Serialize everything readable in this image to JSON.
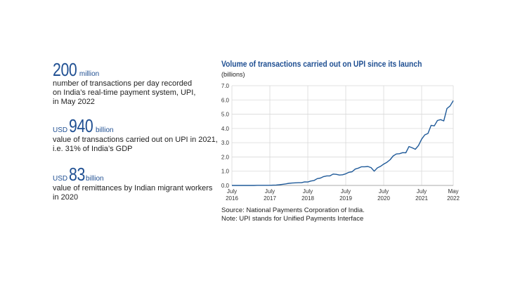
{
  "stats": [
    {
      "prefix": "",
      "number": "200",
      "unit": "million",
      "lines": [
        "number of transactions per day recorded",
        "on India’s real-time payment system, UPI,",
        "in May 2022"
      ]
    },
    {
      "prefix": "USD",
      "number": "940",
      "unit": "billion",
      "lines": [
        "value of transactions carried out on UPI in 2021,",
        "i.e. 31% of India’s GDP"
      ]
    },
    {
      "prefix": "USD",
      "number": "83",
      "unit": "billion",
      "lines": [
        "value of remittances by Indian migrant workers",
        "in 2020"
      ]
    }
  ],
  "chart_data": {
    "type": "line",
    "title": "Volume of transactions carried out on UPI since its launch",
    "ylabel": "(billions)",
    "ylim": [
      0,
      7
    ],
    "yticks": [
      "0.0",
      "1.0",
      "2.0",
      "3.0",
      "4.0",
      "5.0",
      "6.0",
      "7.0"
    ],
    "xlim": [
      "2016-07",
      "2022-05"
    ],
    "xticks": [
      {
        "top": "July",
        "bottom": "2016",
        "date": "2016-07"
      },
      {
        "top": "July",
        "bottom": "2017",
        "date": "2017-07"
      },
      {
        "top": "July",
        "bottom": "2018",
        "date": "2018-07"
      },
      {
        "top": "July",
        "bottom": "2019",
        "date": "2019-07"
      },
      {
        "top": "July",
        "bottom": "2020",
        "date": "2020-07"
      },
      {
        "top": "July",
        "bottom": "2021",
        "date": "2021-07"
      },
      {
        "top": "May",
        "bottom": "2022",
        "date": "2022-05"
      }
    ],
    "grid": true,
    "color": "#1f5a99",
    "series": [
      {
        "points": [
          [
            "2016-07",
            0.0
          ],
          [
            "2016-08",
            0.0
          ],
          [
            "2016-09",
            0.0
          ],
          [
            "2016-10",
            0.0
          ],
          [
            "2016-11",
            0.0
          ],
          [
            "2016-12",
            0.0
          ],
          [
            "2017-01",
            0.0
          ],
          [
            "2017-02",
            0.0
          ],
          [
            "2017-03",
            0.01
          ],
          [
            "2017-04",
            0.01
          ],
          [
            "2017-05",
            0.01
          ],
          [
            "2017-06",
            0.01
          ],
          [
            "2017-07",
            0.01
          ],
          [
            "2017-08",
            0.02
          ],
          [
            "2017-09",
            0.03
          ],
          [
            "2017-10",
            0.05
          ],
          [
            "2017-11",
            0.08
          ],
          [
            "2017-12",
            0.11
          ],
          [
            "2018-01",
            0.15
          ],
          [
            "2018-02",
            0.17
          ],
          [
            "2018-03",
            0.18
          ],
          [
            "2018-04",
            0.19
          ],
          [
            "2018-05",
            0.19
          ],
          [
            "2018-06",
            0.25
          ],
          [
            "2018-07",
            0.24
          ],
          [
            "2018-08",
            0.31
          ],
          [
            "2018-09",
            0.35
          ],
          [
            "2018-10",
            0.48
          ],
          [
            "2018-11",
            0.52
          ],
          [
            "2018-12",
            0.62
          ],
          [
            "2019-01",
            0.67
          ],
          [
            "2019-02",
            0.67
          ],
          [
            "2019-03",
            0.8
          ],
          [
            "2019-04",
            0.78
          ],
          [
            "2019-05",
            0.73
          ],
          [
            "2019-06",
            0.75
          ],
          [
            "2019-07",
            0.82
          ],
          [
            "2019-08",
            0.92
          ],
          [
            "2019-09",
            0.96
          ],
          [
            "2019-10",
            1.15
          ],
          [
            "2019-11",
            1.22
          ],
          [
            "2019-12",
            1.31
          ],
          [
            "2020-01",
            1.31
          ],
          [
            "2020-02",
            1.33
          ],
          [
            "2020-03",
            1.25
          ],
          [
            "2020-04",
            1.0
          ],
          [
            "2020-05",
            1.23
          ],
          [
            "2020-06",
            1.34
          ],
          [
            "2020-07",
            1.5
          ],
          [
            "2020-08",
            1.62
          ],
          [
            "2020-09",
            1.8
          ],
          [
            "2020-10",
            2.07
          ],
          [
            "2020-11",
            2.21
          ],
          [
            "2020-12",
            2.23
          ],
          [
            "2021-01",
            2.3
          ],
          [
            "2021-02",
            2.29
          ],
          [
            "2021-03",
            2.73
          ],
          [
            "2021-04",
            2.64
          ],
          [
            "2021-05",
            2.54
          ],
          [
            "2021-06",
            2.8
          ],
          [
            "2021-07",
            3.25
          ],
          [
            "2021-08",
            3.55
          ],
          [
            "2021-09",
            3.65
          ],
          [
            "2021-10",
            4.22
          ],
          [
            "2021-11",
            4.18
          ],
          [
            "2021-12",
            4.56
          ],
          [
            "2022-01",
            4.62
          ],
          [
            "2022-02",
            4.53
          ],
          [
            "2022-03",
            5.4
          ],
          [
            "2022-04",
            5.58
          ],
          [
            "2022-05",
            5.95
          ]
        ]
      }
    ]
  },
  "source_lines": [
    "Source: National Payments Corporation of India.",
    "Note: UPI stands for Unified Payments Interface"
  ]
}
